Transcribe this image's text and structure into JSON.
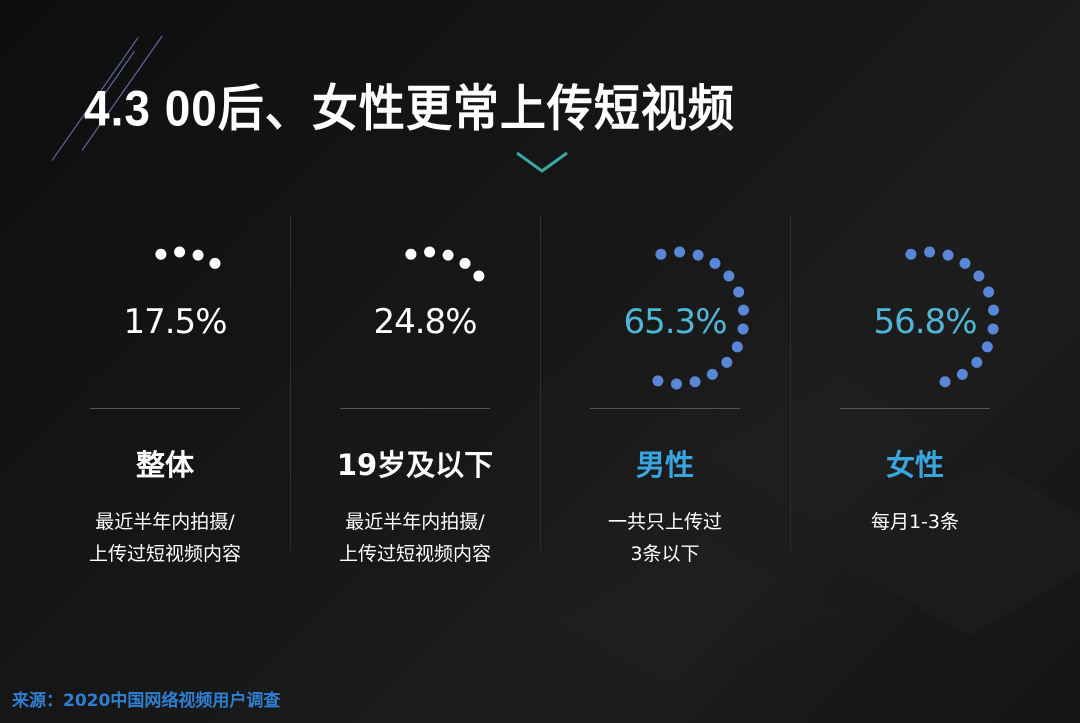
{
  "title": "4.3 00后、女性更常上传短视频",
  "source": "来源：2020中国网络视频用户调查",
  "colors": {
    "white": "#ffffff",
    "blue": "#5a86d8",
    "cyan": "#4fb6d8",
    "label_blue": "#3aa6e0",
    "chevron": "#3aa6a0"
  },
  "chart_data": {
    "type": "dot-ring",
    "categories": [
      "整体",
      "19岁及以下",
      "男性",
      "女性"
    ],
    "values": [
      17.5,
      24.8,
      65.3,
      56.8
    ],
    "value_labels": [
      "17.5%",
      "24.8%",
      "65.3%",
      "56.8%"
    ],
    "descriptions": [
      [
        "最近半年内拍摄/",
        "上传过短视频内容"
      ],
      [
        "最近半年内拍摄/",
        "上传过短视频内容"
      ],
      [
        "一共只上传过",
        "3条以下"
      ],
      [
        "每月1-3条"
      ]
    ],
    "series_colors": [
      "#ffffff",
      "#ffffff",
      "#5a86d8",
      "#5a86d8"
    ]
  }
}
